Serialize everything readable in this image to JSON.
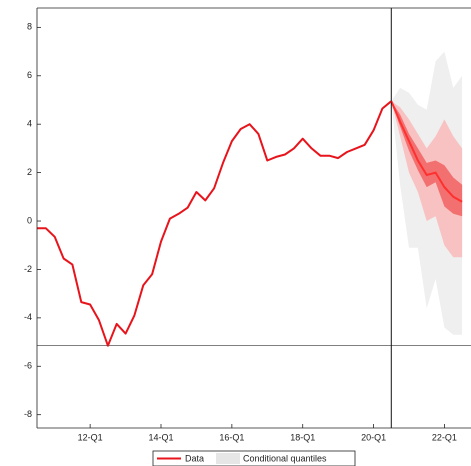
{
  "chart_data": {
    "type": "line",
    "x": [
      10.5,
      10.75,
      11,
      11.25,
      11.5,
      11.75,
      12,
      12.25,
      12.5,
      12.75,
      13,
      13.25,
      13.5,
      13.75,
      14,
      14.25,
      14.5,
      14.75,
      15,
      15.25,
      15.5,
      15.75,
      16,
      16.25,
      16.5,
      16.75,
      17,
      17.25,
      17.5,
      17.75,
      18,
      18.25,
      18.5,
      18.75,
      19,
      19.25,
      19.5,
      19.75,
      20,
      20.25,
      20.5
    ],
    "series": [
      {
        "name": "Data",
        "color": "#e8141c",
        "values": [
          -0.3,
          -0.3,
          -0.65,
          -1.55,
          -1.8,
          -3.35,
          -3.45,
          -4.1,
          -5.15,
          -4.25,
          -4.65,
          -3.9,
          -2.65,
          -2.2,
          -0.85,
          0.1,
          0.3,
          0.55,
          1.2,
          0.85,
          1.35,
          2.4,
          3.3,
          3.8,
          4.0,
          3.6,
          2.5,
          2.65,
          2.75,
          3.0,
          3.4,
          3.0,
          2.7,
          2.7,
          2.6,
          2.85,
          3.0,
          3.15,
          3.75,
          4.65,
          4.95
        ]
      }
    ],
    "fan": {
      "name": "Conditional quantiles",
      "color": "#e6e6e6",
      "x": [
        20.5,
        20.75,
        21,
        21.25,
        21.5,
        21.75,
        22,
        22.25,
        22.5
      ],
      "bands": [
        {
          "color": "#efefef",
          "lower": [
            4.95,
            1.5,
            -1.1,
            -1.1,
            -3.6,
            -2.4,
            -4.4,
            -4.7,
            -4.7
          ],
          "upper": [
            4.95,
            5.5,
            5.3,
            4.8,
            4.6,
            6.6,
            7.0,
            5.5,
            6.0
          ]
        },
        {
          "color": "#f8c2c2",
          "lower": [
            4.95,
            3.5,
            2.0,
            1.2,
            0,
            0.2,
            -1,
            -1.5,
            -1.5
          ],
          "upper": [
            4.95,
            4.7,
            4.2,
            3.6,
            3.0,
            3.5,
            4.2,
            3.5,
            3.0
          ]
        },
        {
          "color": "#f27070",
          "lower": [
            4.95,
            3.9,
            2.9,
            2.1,
            1.4,
            1.6,
            0.6,
            0.3,
            0.2
          ],
          "upper": [
            4.95,
            4.4,
            3.6,
            3.0,
            2.4,
            2.5,
            2.3,
            1.8,
            1.5
          ]
        }
      ],
      "median_color": "#ff3030",
      "median": [
        4.95,
        4.1,
        3.3,
        2.5,
        1.9,
        2.0,
        1.4,
        1.0,
        0.8
      ]
    },
    "vline": 20.5,
    "hline": -5.15,
    "xlim": [
      10.5,
      22.75
    ],
    "ylim": [
      -8.55,
      8.8
    ],
    "xticks": [
      {
        "value": 12,
        "label": "12-Q1"
      },
      {
        "value": 14,
        "label": "14-Q1"
      },
      {
        "value": 16,
        "label": "16-Q1"
      },
      {
        "value": 18,
        "label": "18-Q1"
      },
      {
        "value": 20,
        "label": "20-Q1"
      },
      {
        "value": 22,
        "label": "22-Q1"
      }
    ],
    "yticks": [
      -8,
      -6,
      -4,
      -2,
      0,
      2,
      4,
      6,
      8
    ]
  }
}
